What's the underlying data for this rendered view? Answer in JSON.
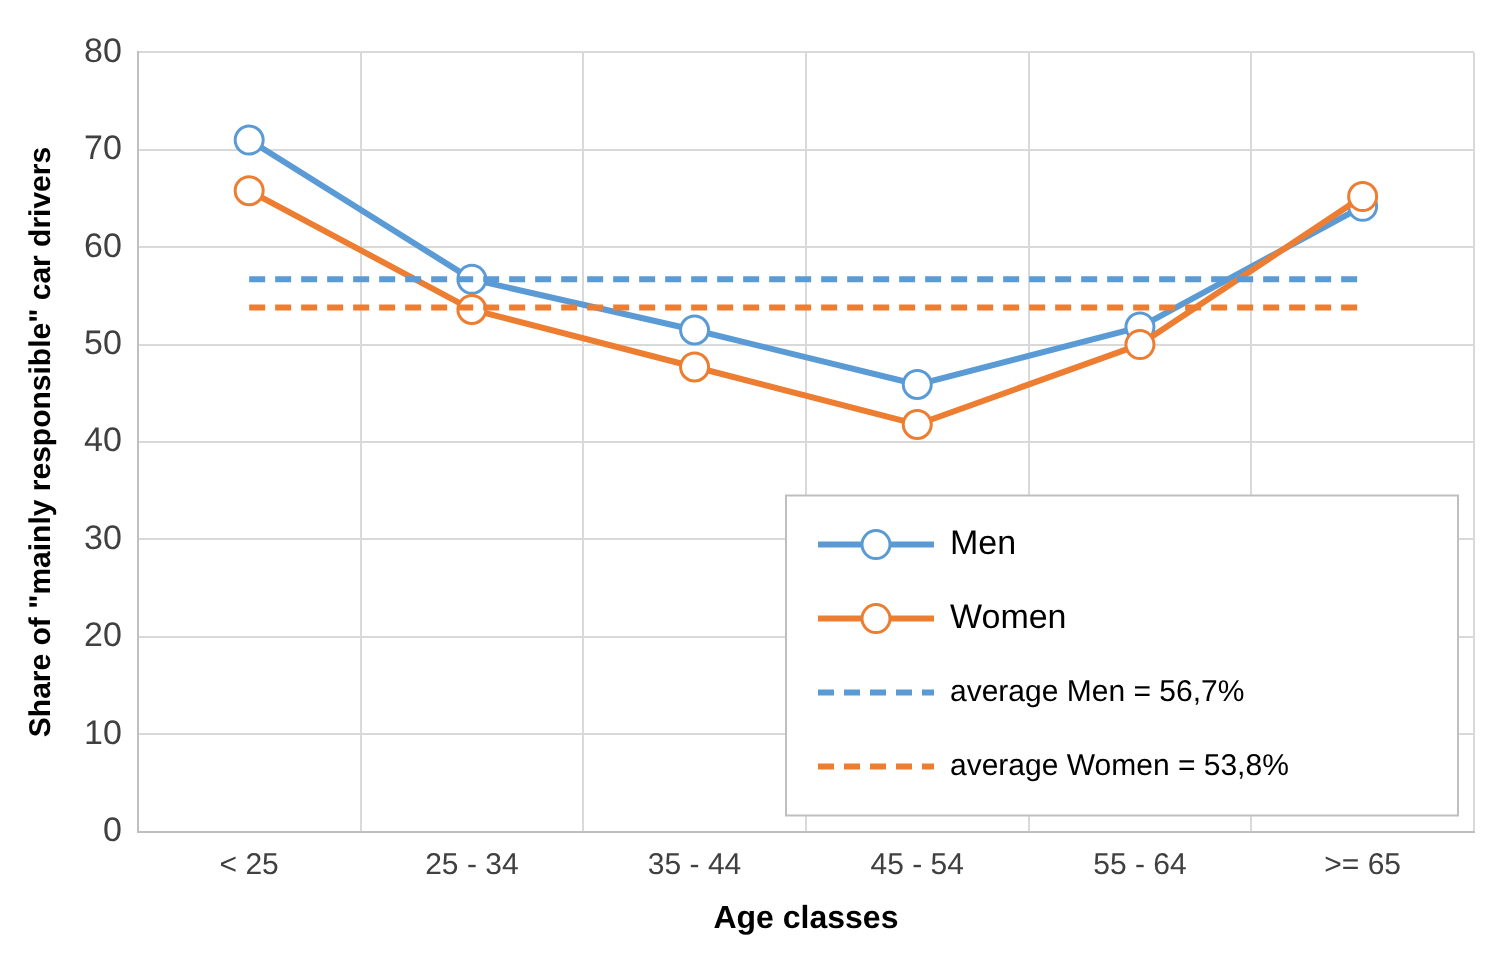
{
  "chart_data": {
    "type": "line",
    "xlabel": "Age classes",
    "ylabel": "Share of \"mainly responsible\" car drivers",
    "categories": [
      "< 25",
      "25 - 34",
      "35 - 44",
      "45 - 54",
      "55 - 64",
      ">= 65"
    ],
    "series": [
      {
        "name": "Men",
        "color": "#5b9bd5",
        "values": [
          71.0,
          56.7,
          51.5,
          45.9,
          51.8,
          64.2
        ],
        "marker": "circle",
        "line_style": "solid"
      },
      {
        "name": "Women",
        "color": "#ed7d31",
        "values": [
          65.8,
          53.6,
          47.7,
          41.8,
          50.0,
          65.2
        ],
        "marker": "circle",
        "line_style": "solid"
      },
      {
        "name": "average Men = 56,7%",
        "color": "#5b9bd5",
        "values": [
          56.7,
          56.7,
          56.7,
          56.7,
          56.7,
          56.7
        ],
        "marker": "none",
        "line_style": "dashed"
      },
      {
        "name": "average Women = 53,8%",
        "color": "#ed7d31",
        "values": [
          53.8,
          53.8,
          53.8,
          53.8,
          53.8,
          53.8
        ],
        "marker": "none",
        "line_style": "dashed"
      }
    ],
    "ylim": [
      0,
      80
    ],
    "yticks": [
      0,
      10,
      20,
      30,
      40,
      50,
      60,
      70,
      80
    ],
    "grid": true,
    "legend": "bottom right"
  }
}
